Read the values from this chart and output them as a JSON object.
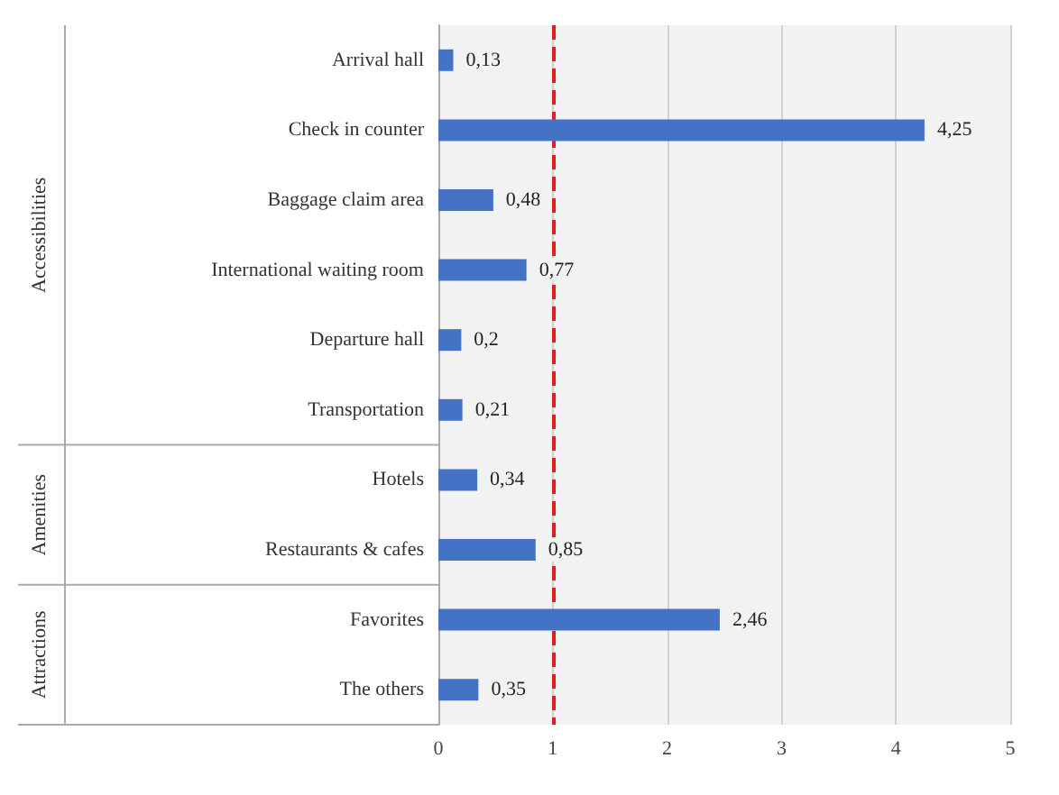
{
  "chart_data": {
    "type": "bar",
    "orientation": "horizontal",
    "categories": [
      "Arrival hall",
      "Check in counter",
      "Baggage claim area",
      "International waiting room",
      "Departure hall",
      "Transportation",
      "Hotels",
      "Restaurants & cafes",
      "Favorites",
      "The others"
    ],
    "values": [
      0.13,
      4.25,
      0.48,
      0.77,
      0.2,
      0.21,
      0.34,
      0.85,
      2.46,
      0.35
    ],
    "value_labels": [
      "0,13",
      "4,25",
      "0,48",
      "0,77",
      "0,2",
      "0,21",
      "0,34",
      "0,85",
      "2,46",
      "0,35"
    ],
    "color": "#4472c4",
    "xlim": [
      0,
      5
    ],
    "xticks": [
      0,
      1,
      2,
      3,
      4,
      5
    ],
    "grid": "x",
    "ref_lines": [
      {
        "axis": "x",
        "value": 1,
        "color": "#e02020",
        "line_style": "dashed"
      }
    ],
    "annotations": [
      "Accessibilities",
      "Amenities",
      "Attractions"
    ]
  }
}
